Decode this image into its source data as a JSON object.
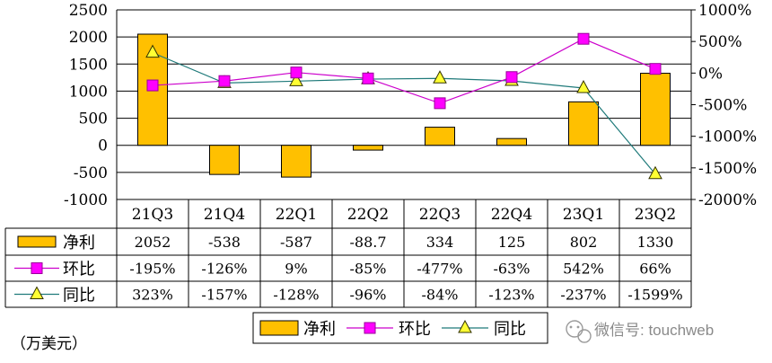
{
  "chart_data": {
    "type": "bar",
    "categories": [
      "21Q3",
      "21Q4",
      "22Q1",
      "22Q2",
      "22Q3",
      "22Q4",
      "23Q1",
      "23Q2"
    ],
    "left_axis": {
      "ylim": [
        -1000,
        2500
      ],
      "ticks": [
        2500,
        2000,
        1500,
        1000,
        500,
        0,
        -500,
        -1000
      ]
    },
    "right_axis": {
      "ylim": [
        -2000,
        1000
      ],
      "ticks": [
        1000,
        500,
        0,
        -500,
        -1000,
        -1500,
        -2000
      ],
      "unit": "%"
    },
    "series": [
      {
        "name": "净利",
        "kind": "bar",
        "axis": "left",
        "color": "#FFC000",
        "values": [
          2052,
          -538,
          -587,
          -88.7,
          334,
          125,
          802,
          1330
        ],
        "value_labels": [
          "2052",
          "-538",
          "-587",
          "-88.7",
          "334",
          "125",
          "802",
          "1330"
        ]
      },
      {
        "name": "环比",
        "kind": "line",
        "axis": "right",
        "color": "#CC00CC",
        "marker": "square",
        "marker_color": "#FF00FF",
        "values": [
          -195,
          -126,
          9,
          -85,
          -477,
          -63,
          542,
          66
        ],
        "value_labels": [
          "-195%",
          "-126%",
          "9%",
          "-85%",
          "-477%",
          "-63%",
          "542%",
          "66%"
        ]
      },
      {
        "name": "同比",
        "kind": "line",
        "axis": "right",
        "color": "#1F7A7A",
        "marker": "triangle",
        "marker_color": "#FFFF33",
        "values": [
          323,
          -157,
          -128,
          -96,
          -84,
          -123,
          -237,
          -1599
        ],
        "value_labels": [
          "323%",
          "-157%",
          "-128%",
          "-96%",
          "-84%",
          "-123%",
          "-237%",
          "-1599%"
        ]
      }
    ],
    "legend": {
      "placement": "bottom"
    },
    "grid": true,
    "unit_label": "（万美元）"
  },
  "watermark": {
    "text": "微信号: touchweb",
    "icon": "wechat-icon"
  }
}
